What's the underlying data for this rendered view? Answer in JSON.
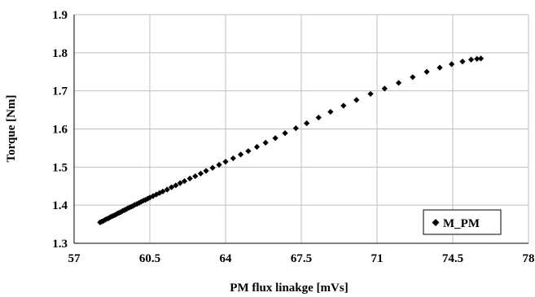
{
  "chart_data": {
    "type": "scatter",
    "title": "",
    "xlabel": "PM flux linakge [mVs]",
    "ylabel": "Torque [Nm]",
    "xlim": [
      57,
      78
    ],
    "ylim": [
      1.3,
      1.9
    ],
    "xticks": [
      "57",
      "60.5",
      "64",
      "67.5",
      "71",
      "74.5",
      "78"
    ],
    "yticks": [
      "1.3",
      "1.4",
      "1.5",
      "1.6",
      "1.7",
      "1.8",
      "1.9"
    ],
    "grid": true,
    "legend_position": "bottom-right",
    "colors": {
      "marker": "#000000",
      "grid": "#bfbfbf",
      "axis": "#000000"
    },
    "series": [
      {
        "name": "M_PM",
        "marker": "diamond",
        "points": [
          [
            58.2,
            1.355
          ],
          [
            58.28,
            1.357
          ],
          [
            58.36,
            1.359
          ],
          [
            58.44,
            1.362
          ],
          [
            58.52,
            1.364
          ],
          [
            58.6,
            1.366
          ],
          [
            58.68,
            1.369
          ],
          [
            58.76,
            1.371
          ],
          [
            58.84,
            1.373
          ],
          [
            58.92,
            1.375
          ],
          [
            59.0,
            1.378
          ],
          [
            59.08,
            1.38
          ],
          [
            59.16,
            1.382
          ],
          [
            59.24,
            1.385
          ],
          [
            59.32,
            1.387
          ],
          [
            59.4,
            1.389
          ],
          [
            59.48,
            1.392
          ],
          [
            59.56,
            1.394
          ],
          [
            59.64,
            1.396
          ],
          [
            59.72,
            1.398
          ],
          [
            59.8,
            1.401
          ],
          [
            59.9,
            1.403
          ],
          [
            60.0,
            1.406
          ],
          [
            60.1,
            1.409
          ],
          [
            60.2,
            1.412
          ],
          [
            60.3,
            1.414
          ],
          [
            60.4,
            1.417
          ],
          [
            60.5,
            1.42
          ],
          [
            60.65,
            1.424
          ],
          [
            60.8,
            1.428
          ],
          [
            60.95,
            1.432
          ],
          [
            61.1,
            1.436
          ],
          [
            61.3,
            1.441
          ],
          [
            61.5,
            1.447
          ],
          [
            61.7,
            1.452
          ],
          [
            61.9,
            1.458
          ],
          [
            62.1,
            1.463
          ],
          [
            62.35,
            1.47
          ],
          [
            62.6,
            1.476
          ],
          [
            62.85,
            1.483
          ],
          [
            63.1,
            1.49
          ],
          [
            63.4,
            1.498
          ],
          [
            63.7,
            1.506
          ],
          [
            64.0,
            1.514
          ],
          [
            64.35,
            1.523
          ],
          [
            64.7,
            1.533
          ],
          [
            65.05,
            1.542
          ],
          [
            65.45,
            1.553
          ],
          [
            65.85,
            1.564
          ],
          [
            66.3,
            1.576
          ],
          [
            66.75,
            1.589
          ],
          [
            67.25,
            1.602
          ],
          [
            67.75,
            1.615
          ],
          [
            68.3,
            1.63
          ],
          [
            68.85,
            1.645
          ],
          [
            69.45,
            1.661
          ],
          [
            70.05,
            1.676
          ],
          [
            70.7,
            1.692
          ],
          [
            71.35,
            1.706
          ],
          [
            72.0,
            1.721
          ],
          [
            72.65,
            1.736
          ],
          [
            73.3,
            1.75
          ],
          [
            73.9,
            1.761
          ],
          [
            74.45,
            1.77
          ],
          [
            74.95,
            1.777
          ],
          [
            75.35,
            1.782
          ],
          [
            75.62,
            1.784
          ],
          [
            75.8,
            1.785
          ]
        ]
      }
    ]
  }
}
